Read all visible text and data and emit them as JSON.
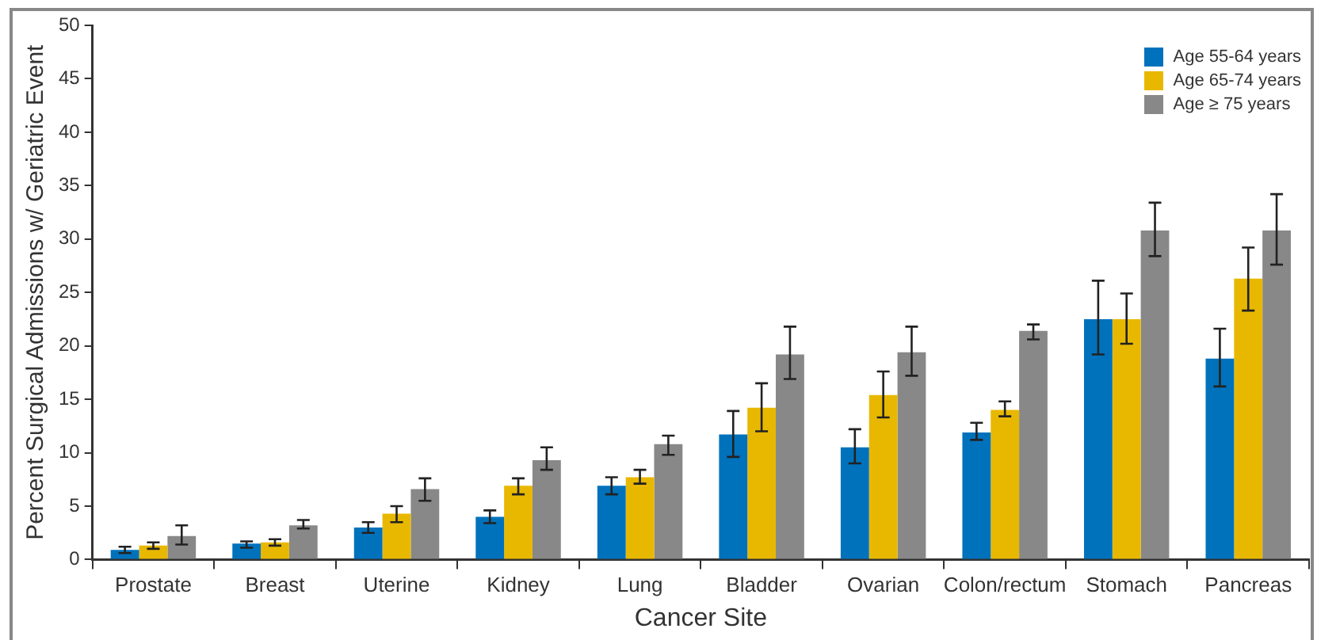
{
  "chart_data": {
    "type": "bar",
    "xlabel": "Cancer Site",
    "ylabel": "Percent Surgical Admissions w/ Geriatric Event",
    "categories": [
      "Prostate",
      "Breast",
      "Uterine",
      "Kidney",
      "Lung",
      "Bladder",
      "Ovarian",
      "Colon/rectum",
      "Stomach",
      "Pancreas"
    ],
    "series": [
      {
        "name": "Age 55-64 years",
        "color": "#0072bc",
        "values": [
          0.9,
          1.5,
          3.0,
          4.0,
          6.9,
          11.7,
          10.5,
          11.9,
          22.5,
          18.8
        ],
        "errors": [
          [
            0.6,
            1.2
          ],
          [
            1.1,
            1.7
          ],
          [
            2.5,
            3.5
          ],
          [
            3.4,
            4.6
          ],
          [
            6.1,
            7.7
          ],
          [
            9.6,
            13.9
          ],
          [
            9.0,
            12.2
          ],
          [
            11.2,
            12.8
          ],
          [
            19.2,
            26.1
          ],
          [
            16.2,
            21.6
          ]
        ]
      },
      {
        "name": "Age 65-74 years",
        "color": "#e8b800",
        "values": [
          1.3,
          1.6,
          4.3,
          6.9,
          7.7,
          14.2,
          15.4,
          14.0,
          22.5,
          26.3
        ],
        "errors": [
          [
            1.0,
            1.6
          ],
          [
            1.3,
            1.9
          ],
          [
            3.5,
            5.0
          ],
          [
            6.1,
            7.6
          ],
          [
            7.1,
            8.4
          ],
          [
            12.0,
            16.5
          ],
          [
            13.3,
            17.6
          ],
          [
            13.4,
            14.8
          ],
          [
            20.2,
            24.9
          ],
          [
            23.3,
            29.2
          ]
        ]
      },
      {
        "name": "Age ≥ 75 years",
        "color": "#888888",
        "values": [
          2.2,
          3.2,
          6.6,
          9.3,
          10.8,
          19.2,
          19.4,
          21.4,
          30.8,
          30.8
        ],
        "errors": [
          [
            1.4,
            3.2
          ],
          [
            2.9,
            3.7
          ],
          [
            5.5,
            7.6
          ],
          [
            8.4,
            10.5
          ],
          [
            9.8,
            11.6
          ],
          [
            16.9,
            21.8
          ],
          [
            17.2,
            21.8
          ],
          [
            20.6,
            22.0
          ],
          [
            28.4,
            33.4
          ],
          [
            27.6,
            34.2
          ]
        ]
      }
    ],
    "ylim": [
      0,
      50
    ],
    "yticks": [
      0,
      5,
      10,
      15,
      20,
      25,
      30,
      35,
      40,
      45,
      50
    ],
    "grid": false,
    "legend": "top right"
  }
}
